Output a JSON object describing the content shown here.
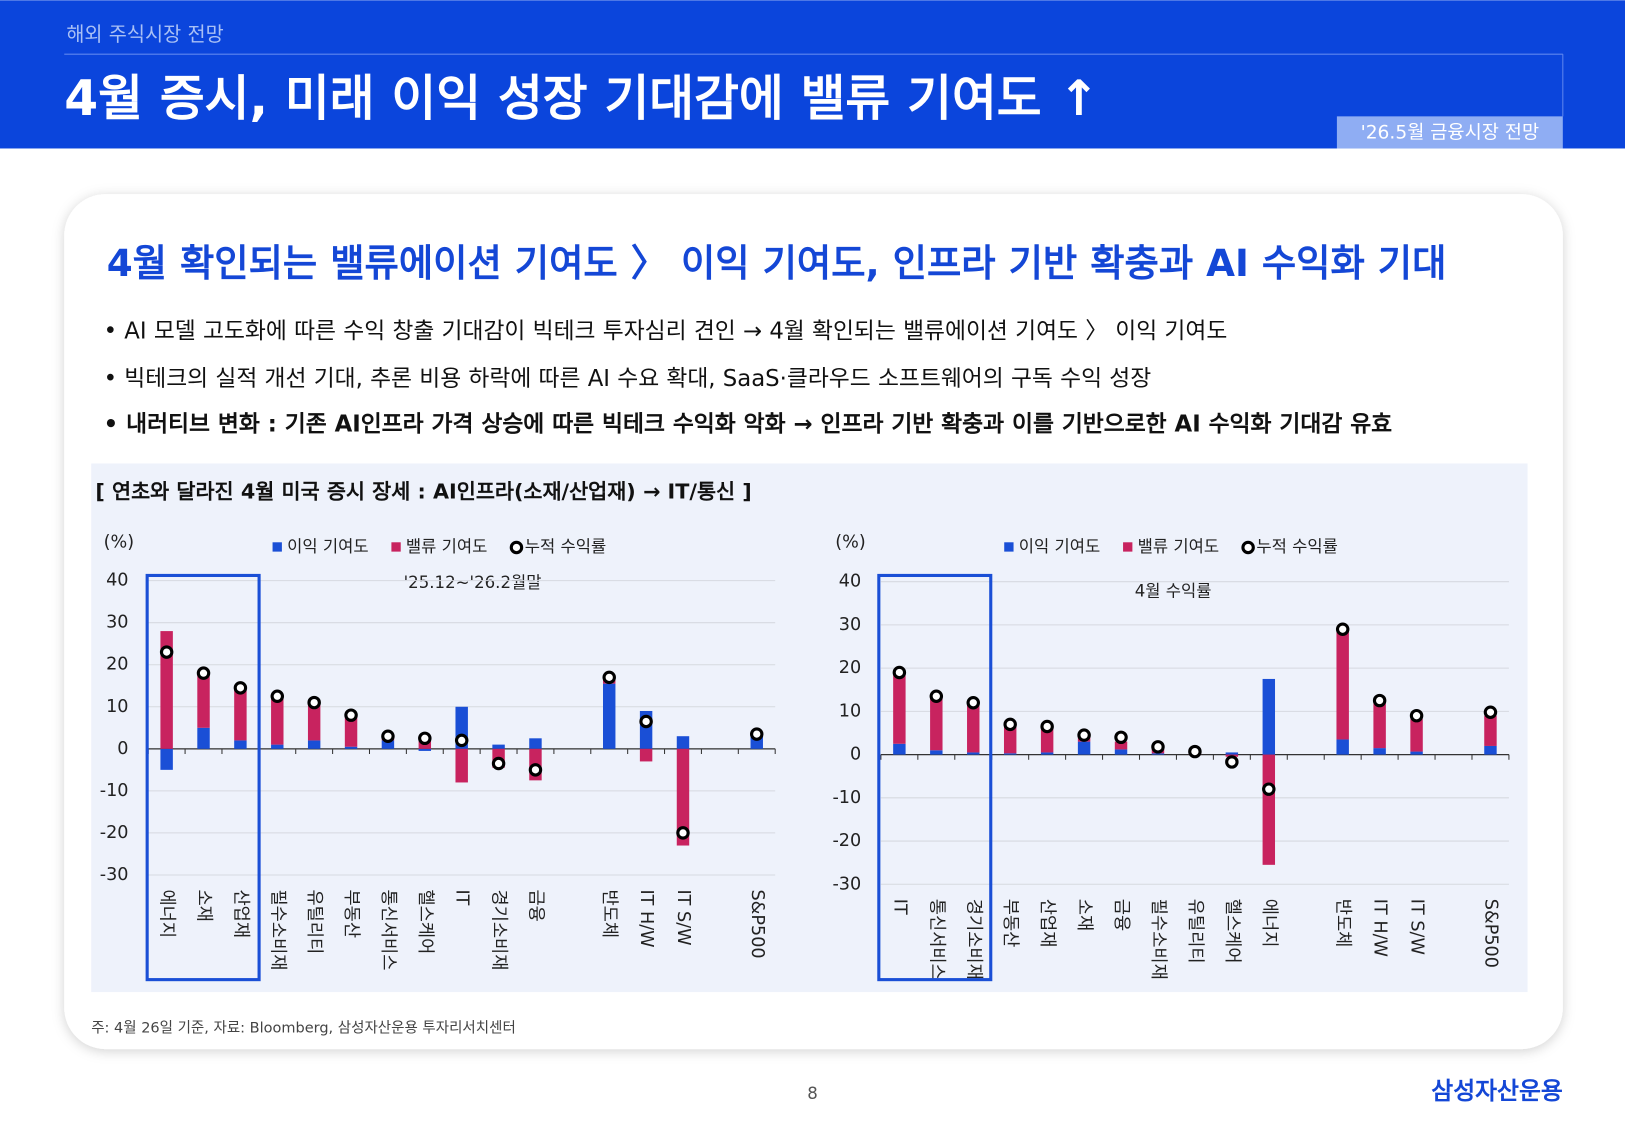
{
  "header": {
    "section": "해외 주식시장 전망",
    "title": "4월 증시, 미래 이익 성장 기대감에 밸류 기여도 ↑",
    "badge": "'26.5월 금융시장 전망"
  },
  "card": {
    "heading": "4월 확인되는 밸류에이션 기여도 〉 이익 기여도, 인프라 기반 확충과 AI 수익화 기대",
    "bullets": [
      "• AI 모델 고도화에 따른 수익 창출 기대감이 빅테크 투자심리 견인 → 4월 확인되는 밸류에이션 기여도 〉 이익 기여도",
      "• 빅테크의 실적 개선 기대, 추론 비용 하락에 따른 AI 수요 확대, SaaS·클라우드 소프트웨어의 구독 수익 성장",
      "• 내러티브 변화 : 기존 AI인프라 가격 상승에 따른 빅테크 수익화 악화 → 인프라 기반 확충과 이를 기반으로한 AI 수익화 기대감 유효"
    ],
    "chart_title": "[ 연초와 달라진 4월 미국 증시 장세 : AI인프라(소재/산업재) → IT/통신 ]",
    "note": "주: 4월 26일 기준, 자료: Bloomberg, 삼성자산운용 투자리서치센터"
  },
  "chart_data": [
    {
      "type": "bar",
      "stacked": true,
      "unit_label": "(%)",
      "annotation": "'25.12~'26.2월말",
      "categories": [
        "에너지",
        "소재",
        "산업재",
        "필수소비재",
        "유틸리티",
        "부동산",
        "통신서비스",
        "헬스케어",
        "IT",
        "경기소비재",
        "금융",
        null,
        "반도체",
        "IT H/W",
        "IT S/W",
        null,
        "S&P500"
      ],
      "series": [
        {
          "name": "이익 기여도",
          "color": "#1a4fd6",
          "values": [
            -5,
            5,
            2,
            1,
            2,
            0.5,
            2,
            -0.5,
            10,
            1,
            2.5,
            null,
            15.5,
            9,
            3,
            null,
            3
          ]
        },
        {
          "name": "밸류 기여도",
          "color": "#c8235f",
          "values": [
            28,
            13,
            12.5,
            11.5,
            9,
            7.5,
            1,
            3,
            -8,
            -4.5,
            -7.5,
            null,
            1.5,
            -3,
            -23,
            null,
            0.5
          ]
        },
        {
          "name": "누적 수익률",
          "type": "marker",
          "color": "#000000",
          "values": [
            23,
            18,
            14.5,
            12.5,
            11,
            8,
            3,
            2.5,
            2,
            -3.5,
            -5,
            null,
            17,
            6.5,
            -20,
            null,
            3.5
          ]
        }
      ],
      "ylim": [
        -30,
        40
      ],
      "yticks": [
        -30,
        -20,
        -10,
        0,
        10,
        20,
        30,
        40
      ],
      "grid": true
    },
    {
      "type": "bar",
      "stacked": true,
      "unit_label": "(%)",
      "annotation": "4월 수익률",
      "categories": [
        "IT",
        "통신서비스",
        "경기소비재",
        "부동산",
        "산업재",
        "소재",
        "금융",
        "필수소비재",
        "유틸리티",
        "헬스케어",
        "에너지",
        null,
        "반도체",
        "IT H/W",
        "IT S/W",
        null,
        "S&P500"
      ],
      "series": [
        {
          "name": "이익 기여도",
          "color": "#1a4fd6",
          "values": [
            2.5,
            1,
            0.5,
            0.3,
            0.5,
            3,
            1.2,
            0.3,
            0,
            0.5,
            17.5,
            null,
            3.5,
            1.5,
            0.7,
            null,
            2
          ]
        },
        {
          "name": "밸류 기여도",
          "color": "#c8235f",
          "values": [
            16,
            12,
            11,
            6.5,
            5.5,
            1.5,
            1.8,
            1,
            0.3,
            -0.5,
            -25.5,
            null,
            25.5,
            10.5,
            7.5,
            null,
            7
          ]
        },
        {
          "name": "누적 수익률",
          "type": "marker",
          "color": "#000000",
          "values": [
            19,
            13.5,
            12,
            7,
            6.5,
            4.5,
            4,
            1.8,
            0.7,
            -1.7,
            -8,
            null,
            29,
            12.5,
            9,
            null,
            9.8
          ]
        }
      ],
      "ylim": [
        -30,
        40
      ],
      "yticks": [
        -30,
        -20,
        -10,
        0,
        10,
        20,
        30,
        40
      ],
      "grid": true
    }
  ],
  "footer": {
    "page": "8",
    "brand": "삼성자산운용"
  }
}
